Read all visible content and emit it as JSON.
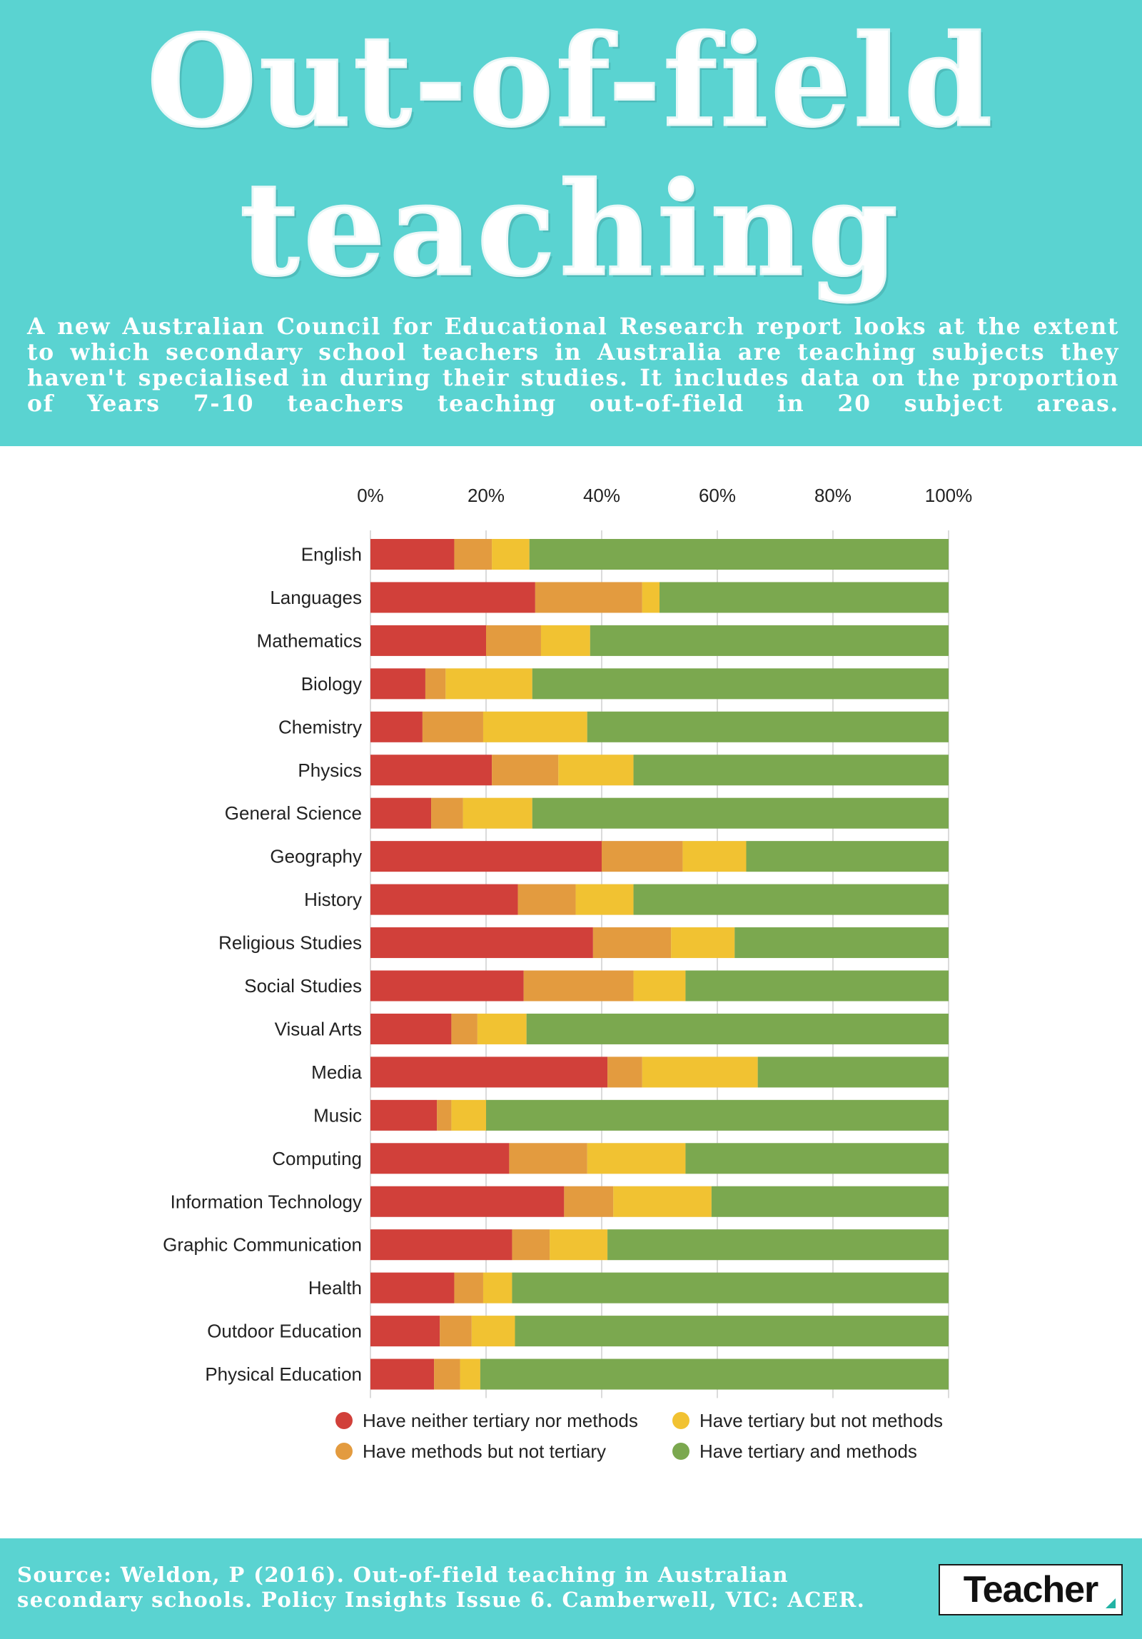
{
  "header": {
    "title_line1": "Out-of-field",
    "title_line2": "teaching",
    "intro": "A new Australian Council for Educational Research report looks at the extent to which secondary school teachers in Australia are teaching subjects they haven't specialised in during their studies. It includes data on the proportion of Years 7-10 teachers teaching out-of-field in 20 subject areas."
  },
  "colors": {
    "header_bg": "#5ad3d1",
    "neither": "#d1403a",
    "methods_only": "#e39b3f",
    "tertiary_only": "#f1c232",
    "both": "#7ba84f",
    "row_bg": "#e6e6e6"
  },
  "chart_data": {
    "type": "bar",
    "orientation": "horizontal",
    "stacked": true,
    "title": "",
    "xlabel": "",
    "ylabel": "",
    "xlim": [
      0,
      100
    ],
    "x_ticks": [
      "0%",
      "20%",
      "40%",
      "60%",
      "80%",
      "100%"
    ],
    "grid": true,
    "legend_position": "bottom",
    "categories": [
      "English",
      "Languages",
      "Mathematics",
      "Biology",
      "Chemistry",
      "Physics",
      "General Science",
      "Geography",
      "History",
      "Religious Studies",
      "Social Studies",
      "Visual Arts",
      "Media",
      "Music",
      "Computing",
      "Information Technology",
      "Graphic Communication",
      "Health",
      "Outdoor Education",
      "Physical Education"
    ],
    "series": [
      {
        "name": "Have neither tertiary nor methods",
        "color": "#d1403a",
        "values": [
          14.5,
          28.5,
          20,
          9.5,
          9,
          21,
          10.5,
          40,
          25.5,
          38.5,
          26.5,
          14,
          41,
          11.5,
          24,
          33.5,
          24.5,
          14.5,
          12,
          11
        ]
      },
      {
        "name": "Have methods but not tertiary",
        "color": "#e39b3f",
        "values": [
          6.5,
          18.5,
          9.5,
          3.5,
          10.5,
          11.5,
          5.5,
          14,
          10,
          13.5,
          19,
          4.5,
          6,
          2.5,
          13.5,
          8.5,
          6.5,
          5,
          5.5,
          4.5
        ]
      },
      {
        "name": "Have tertiary but not methods",
        "color": "#f1c232",
        "values": [
          6.5,
          3,
          8.5,
          15,
          18,
          13,
          12,
          11,
          10,
          11,
          9,
          8.5,
          20,
          6,
          17,
          17,
          10,
          5,
          7.5,
          3.5
        ]
      },
      {
        "name": "Have tertiary and methods",
        "color": "#7ba84f",
        "values": [
          72.5,
          50,
          62,
          72,
          62.5,
          54.5,
          72,
          35,
          54.5,
          37,
          45.5,
          73,
          33,
          80,
          45.5,
          41,
          59,
          75.5,
          75,
          81
        ]
      }
    ]
  },
  "legend": {
    "items": [
      {
        "label": "Have neither tertiary nor methods",
        "color": "#d1403a"
      },
      {
        "label": "Have methods but not tertiary",
        "color": "#e39b3f"
      },
      {
        "label": "Have tertiary but not methods",
        "color": "#f1c232"
      },
      {
        "label": "Have tertiary and methods",
        "color": "#7ba84f"
      }
    ]
  },
  "footer": {
    "source": "Source: Weldon, P (2016). Out-of-field teaching in Australian secondary schools. Policy Insights Issue 6. Camberwell, VIC: ACER.",
    "logo_text": "Teacher"
  }
}
